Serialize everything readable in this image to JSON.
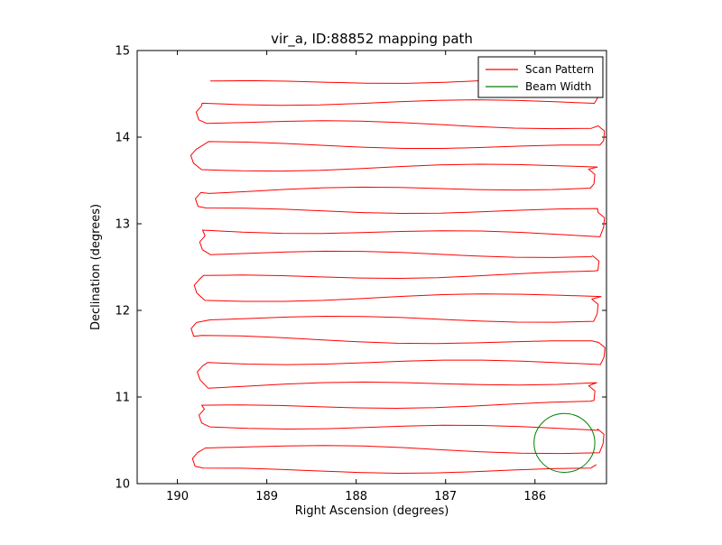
{
  "chart_data": {
    "type": "line",
    "title": "vir_a, ID:88852 mapping path",
    "xlabel": "Right Ascension (degrees)",
    "ylabel": "Declination (degrees)",
    "xlim": [
      190.45,
      185.2
    ],
    "ylim": [
      10,
      15
    ],
    "x_axis_reversed": true,
    "xticks": [
      190,
      189,
      188,
      187,
      186
    ],
    "yticks": [
      10,
      11,
      12,
      13,
      14,
      15
    ],
    "grid": false,
    "legend": {
      "position": "upper right",
      "entries": [
        {
          "label": "Scan Pattern",
          "color": "#ff0000"
        },
        {
          "label": "Beam Width",
          "color": "#008000"
        }
      ]
    },
    "scan_pattern": {
      "color": "#ff0000",
      "dec_start": 10.15,
      "dec_end": 14.65,
      "dec_step": 0.25,
      "row_count": 19,
      "ra_left": 189.68,
      "ra_right": 185.32,
      "left_loop_overshoot_ra": 0.12,
      "right_hook_overshoot_ra": 0.05,
      "wiggle_amplitude_deg": 0.03
    },
    "beam_width": {
      "color": "#008000",
      "center_ra": 185.67,
      "center_dec": 10.47,
      "radius_deg": 0.34
    }
  }
}
